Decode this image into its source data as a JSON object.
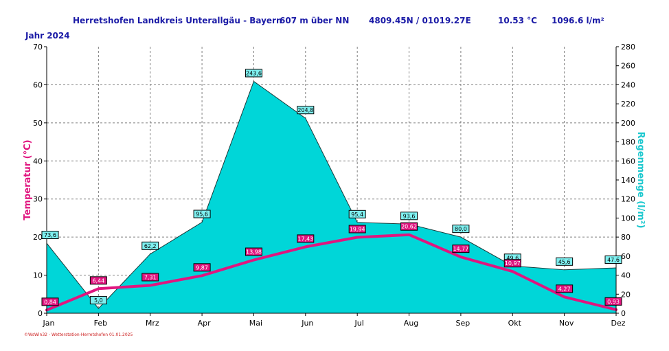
{
  "header": {
    "station": "Herretshofen Landkreis Unterallgäu - Bayern",
    "altitude": "607 m über NN",
    "coords": "4809.45N / 01019.27E",
    "avg_temp": "10.53 °C",
    "total_rain": "1096.6 l/m²",
    "year": "Jahr  2024"
  },
  "footer": {
    "credit": "©WsWin32 - Wetterstation-Herretshofen  01.01.2025"
  },
  "colors": {
    "header": "#1a1aa6",
    "temperature": "#e0157f",
    "rain": "#00d6d8",
    "grid": "#808080"
  },
  "chart_data": {
    "type": "line",
    "categories": [
      "Jan",
      "Feb",
      "Mrz",
      "Apr",
      "Mai",
      "Jun",
      "Jul",
      "Aug",
      "Sep",
      "Okt",
      "Nov",
      "Dez"
    ],
    "series": [
      {
        "name": "",
        "axis": "left",
        "style": "line",
        "values": [
          0.84,
          6.44,
          7.31,
          9.87,
          13.98,
          17.43,
          19.94,
          20.62,
          14.77,
          10.97,
          4.27,
          0.93
        ],
        "labels": [
          "0,84",
          "6,44",
          "7,31",
          "9,87",
          "13,98",
          "17,43",
          "19,94",
          "20,62",
          "14,77",
          "10,97",
          "4,27",
          "0,93"
        ]
      },
      {
        "name": "",
        "axis": "right",
        "style": "area",
        "values": [
          73.6,
          5.0,
          62.2,
          95.6,
          243.6,
          204.8,
          95.4,
          93.6,
          80.0,
          49.6,
          45.6,
          47.6
        ],
        "labels": [
          "73,6",
          "5,0",
          "62,2",
          "95,6",
          "243,6",
          "204,8",
          "95,4",
          "93,6",
          "80,0",
          "49,6",
          "45,6",
          "47,6"
        ]
      }
    ],
    "ylabel": "Temperatur  (°C)",
    "ylim": [
      0,
      70
    ],
    "yticks": [
      "0",
      "10",
      "20",
      "30",
      "40",
      "50",
      "60",
      "70"
    ],
    "y2label": "Regenmenge  (l/m²)",
    "y2lim": [
      0,
      280
    ],
    "y2ticks": [
      "0",
      "20",
      "40",
      "60",
      "80",
      "100",
      "120",
      "140",
      "160",
      "180",
      "200",
      "220",
      "240",
      "260",
      "280"
    ],
    "grid": true,
    "legend": "none"
  }
}
